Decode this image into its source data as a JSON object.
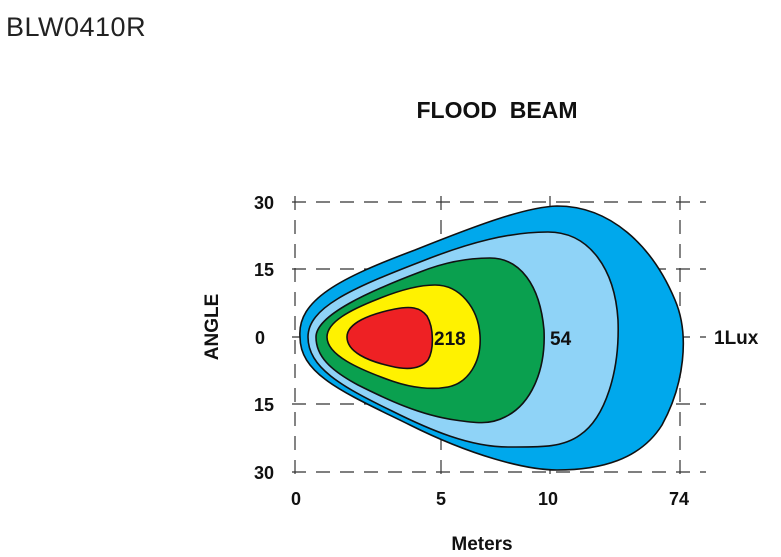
{
  "model": "BLW0410R",
  "chart_data": {
    "type": "beam-pattern",
    "title": "FLOOD  BEAM",
    "xlabel": "Meters",
    "ylabel": "ANGLE",
    "x_ticks": [
      "0",
      "5",
      "10",
      "74"
    ],
    "y_ticks": [
      "30",
      "15",
      "0",
      "15",
      "30"
    ],
    "grid": true,
    "series": [
      {
        "name": "1Lux",
        "color": "#00a8ec"
      },
      {
        "name": "",
        "color": "#8fd3f7"
      },
      {
        "name": "54",
        "color": "#0aa04f"
      },
      {
        "name": "",
        "color": "#fff200"
      },
      {
        "name": "218",
        "color": "#ee2124"
      }
    ]
  }
}
